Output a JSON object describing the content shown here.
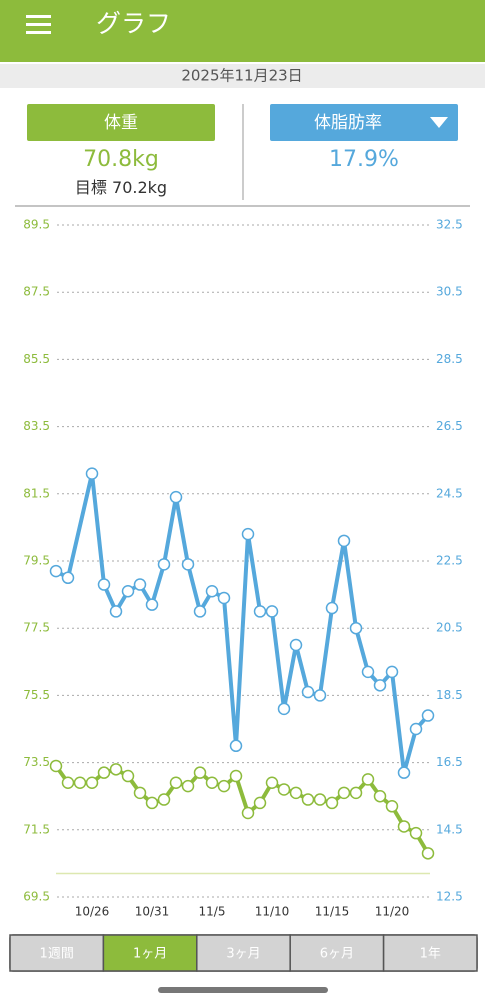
{
  "header": {
    "title": "グラフ"
  },
  "date": "2025年11月23日",
  "summary": {
    "weight": {
      "label": "体重",
      "value": 70.8,
      "unit": "kg",
      "goal_label": "目標",
      "goal": 70.2,
      "goal_unit": "kg"
    },
    "body_fat": {
      "label": "体脂肪率",
      "value": 17.9,
      "unit": "%"
    }
  },
  "chart_data": {
    "type": "line",
    "xlim": [
      "10/23",
      "11/23"
    ],
    "xticks": [
      "10/26",
      "10/31",
      "11/5",
      "11/10",
      "11/15",
      "11/20"
    ],
    "ylim": [
      69.5,
      89.5
    ],
    "yticks": [
      69.5,
      71.5,
      73.5,
      75.5,
      77.5,
      79.5,
      81.5,
      83.5,
      85.5,
      87.5,
      89.5
    ],
    "y2lim": [
      12.5,
      32.5
    ],
    "y2ticks": [
      12.5,
      14.5,
      16.5,
      18.5,
      20.5,
      22.5,
      24.5,
      26.5,
      28.5,
      30.5,
      32.5
    ],
    "grid": true,
    "series": [
      {
        "color": "#8dbb3c",
        "axis": "y",
        "x": [
          "10/23",
          "10/24",
          "10/25",
          "10/26",
          "10/27",
          "10/28",
          "10/29",
          "10/30",
          "10/31",
          "11/1",
          "11/2",
          "11/3",
          "11/4",
          "11/5",
          "11/6",
          "11/7",
          "11/8",
          "11/9",
          "11/10",
          "11/11",
          "11/12",
          "11/13",
          "11/14",
          "11/15",
          "11/16",
          "11/17",
          "11/18",
          "11/19",
          "11/20",
          "11/21",
          "11/22",
          "11/23"
        ],
        "values": [
          73.4,
          72.9,
          72.9,
          72.9,
          73.2,
          73.3,
          73.1,
          72.6,
          72.3,
          72.4,
          72.9,
          72.8,
          73.2,
          72.9,
          72.8,
          73.1,
          72.0,
          72.3,
          72.9,
          72.7,
          72.6,
          72.4,
          72.4,
          72.3,
          72.6,
          72.6,
          73.0,
          72.5,
          72.2,
          71.6,
          71.4,
          70.8
        ]
      },
      {
        "color": "#55a8dc",
        "axis": "y2",
        "x": [
          "10/23",
          "10/24",
          "10/26",
          "10/27",
          "10/28",
          "10/29",
          "10/30",
          "10/31",
          "11/1",
          "11/2",
          "11/3",
          "11/4",
          "11/5",
          "11/6",
          "11/7",
          "11/8",
          "11/9",
          "11/10",
          "11/11",
          "11/12",
          "11/13",
          "11/14",
          "11/15",
          "11/16",
          "11/17",
          "11/18",
          "11/19",
          "11/20",
          "11/21",
          "11/22",
          "11/23"
        ],
        "values": [
          22.2,
          22.0,
          25.1,
          21.8,
          21.0,
          21.6,
          21.8,
          21.2,
          22.4,
          24.4,
          22.4,
          21.0,
          21.6,
          21.4,
          17.0,
          23.3,
          21.0,
          21.0,
          18.1,
          20.0,
          18.6,
          18.5,
          21.1,
          23.1,
          20.5,
          19.2,
          18.8,
          19.2,
          16.2,
          17.5,
          17.9
        ]
      }
    ]
  },
  "tabs": [
    "1週間",
    "1ヶ月",
    "3ヶ月",
    "6ヶ月",
    "1年"
  ],
  "selected_tab": 1
}
